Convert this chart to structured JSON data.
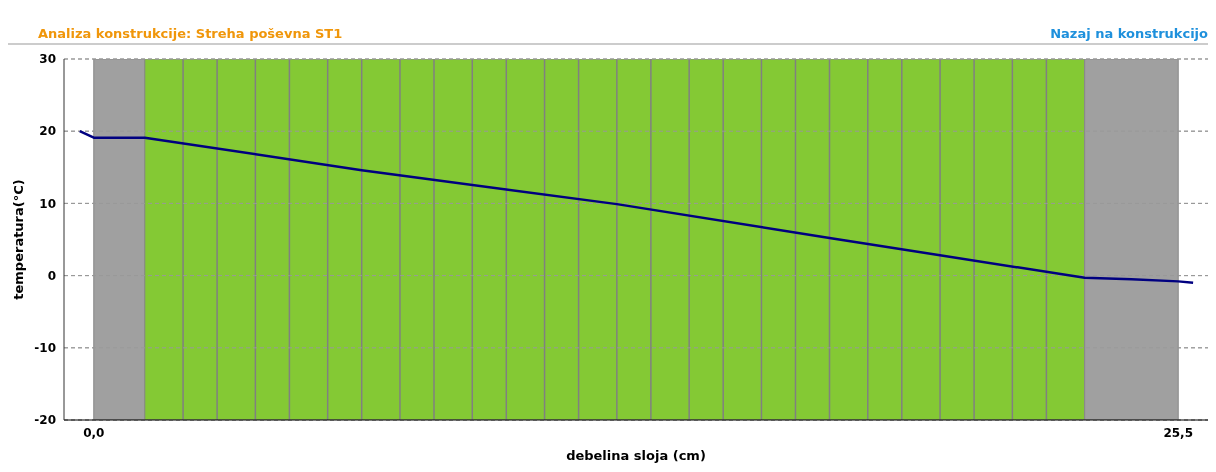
{
  "chart_data": {
    "type": "line",
    "title": "Analiza konstrukcije: Streha poševna ST1",
    "annotations": [
      "Nazaj na konstrukcijo"
    ],
    "xlabel": "debelina sloja (cm)",
    "ylabel": "temperatura(°C)",
    "x": [
      -0.33,
      0,
      1.2,
      6.3,
      12.3,
      17.3,
      23.3,
      24.4,
      25.5,
      25.85
    ],
    "series": [
      {
        "color": "#000080",
        "values": [
          20,
          19.1,
          19.1,
          14.6,
          9.9,
          5.2,
          -0.3,
          -0.5,
          -0.8,
          -1.0
        ]
      }
    ],
    "xlim": [
      -0.7,
      26.2
    ],
    "xticks": [
      {
        "value": 0,
        "label": "0,0"
      },
      {
        "value": 25.5,
        "label": "25,5"
      }
    ],
    "ylim": [
      -20,
      30
    ],
    "yticks": [
      -20,
      -10,
      0,
      10,
      20,
      30
    ],
    "grid": "y",
    "bands": [
      {
        "axis": "x",
        "from": 0,
        "to": 1.2,
        "color": "#a0a0a0"
      },
      {
        "axis": "x",
        "from": 1.2,
        "to": 23.3,
        "color": "#84c934"
      },
      {
        "axis": "x",
        "from": 23.3,
        "to": 25.5,
        "color": "#a0a0a0"
      }
    ],
    "ref_lines": [
      {
        "axis": "x",
        "value": 2.1,
        "color": "#808080"
      },
      {
        "axis": "x",
        "value": 2.9,
        "color": "#808080"
      },
      {
        "axis": "x",
        "value": 3.8,
        "color": "#808080"
      },
      {
        "axis": "x",
        "value": 4.6,
        "color": "#808080"
      },
      {
        "axis": "x",
        "value": 5.5,
        "color": "#808080"
      },
      {
        "axis": "x",
        "value": 6.3,
        "color": "#808080"
      },
      {
        "axis": "x",
        "value": 7.2,
        "color": "#808080"
      },
      {
        "axis": "x",
        "value": 8.0,
        "color": "#808080"
      },
      {
        "axis": "x",
        "value": 8.9,
        "color": "#808080"
      },
      {
        "axis": "x",
        "value": 9.7,
        "color": "#808080"
      },
      {
        "axis": "x",
        "value": 10.6,
        "color": "#808080"
      },
      {
        "axis": "x",
        "value": 11.4,
        "color": "#808080"
      },
      {
        "axis": "x",
        "value": 12.3,
        "color": "#808080"
      },
      {
        "axis": "x",
        "value": 13.1,
        "color": "#808080"
      },
      {
        "axis": "x",
        "value": 14.0,
        "color": "#808080"
      },
      {
        "axis": "x",
        "value": 14.8,
        "color": "#808080"
      },
      {
        "axis": "x",
        "value": 15.7,
        "color": "#808080"
      },
      {
        "axis": "x",
        "value": 16.5,
        "color": "#808080"
      },
      {
        "axis": "x",
        "value": 17.3,
        "color": "#808080"
      },
      {
        "axis": "x",
        "value": 18.2,
        "color": "#808080"
      },
      {
        "axis": "x",
        "value": 19.0,
        "color": "#808080"
      },
      {
        "axis": "x",
        "value": 19.9,
        "color": "#808080"
      },
      {
        "axis": "x",
        "value": 20.7,
        "color": "#808080"
      },
      {
        "axis": "x",
        "value": 21.6,
        "color": "#808080"
      },
      {
        "axis": "x",
        "value": 22.4,
        "color": "#808080"
      }
    ]
  }
}
